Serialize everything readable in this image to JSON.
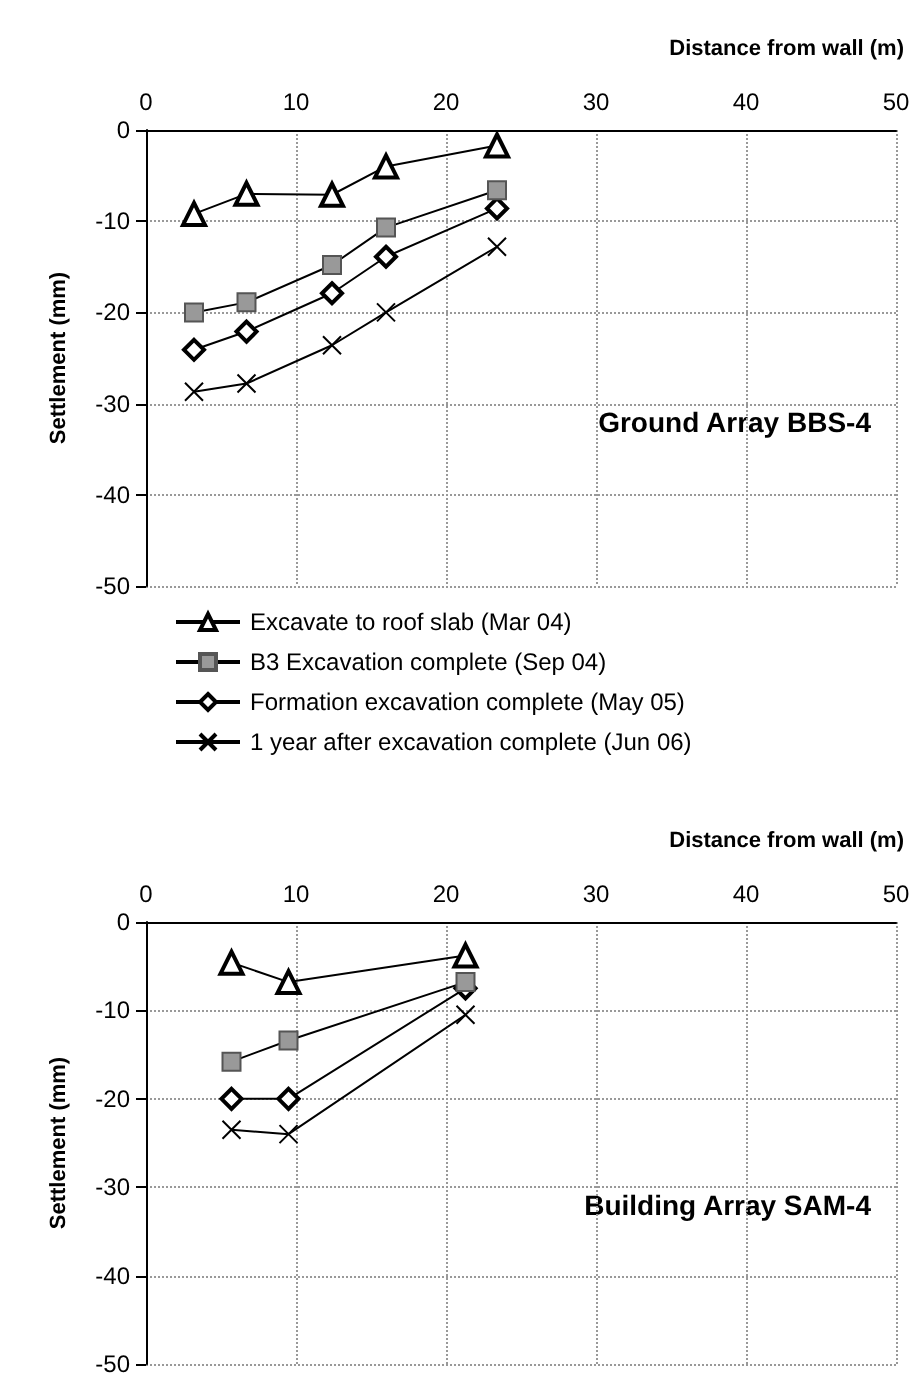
{
  "chart_data": [
    {
      "type": "line",
      "xlabel": "Distance from wall (m)",
      "ylabel": "Settlement (mm)",
      "annotations": [
        "Ground Array BBS-4"
      ],
      "xlim": [
        0,
        50
      ],
      "xticks": [
        0,
        10,
        20,
        30,
        40,
        50
      ],
      "ylim": [
        -50,
        0
      ],
      "yticks": [
        -50,
        -40,
        -30,
        -20,
        -10,
        0
      ],
      "grid": true,
      "legend": "bottom",
      "series": [
        {
          "name": "Excavate to roof slab (Mar 04)",
          "color": "#000000",
          "marker": "triangle",
          "x": [
            3.2,
            6.7,
            12.4,
            16.0,
            23.4
          ],
          "values": [
            -9.2,
            -7.0,
            -7.1,
            -4.0,
            -1.7
          ]
        },
        {
          "name": "B3 Excavation complete (Sep 04)",
          "color": "#999999",
          "marker": "square",
          "x": [
            3.2,
            6.7,
            12.4,
            16.0,
            23.4
          ],
          "values": [
            -20.0,
            -18.9,
            -14.8,
            -10.7,
            -6.6
          ]
        },
        {
          "name": "Formation excavation complete (May 05)",
          "color": "#000000",
          "marker": "diamond",
          "x": [
            3.2,
            6.7,
            12.4,
            16.0,
            23.4
          ],
          "values": [
            -24.1,
            -22.1,
            -17.9,
            -13.9,
            -8.6
          ]
        },
        {
          "name": "1 year after excavation complete (Jun 06)",
          "color": "#000000",
          "marker": "cross",
          "x": [
            3.2,
            6.7,
            12.4,
            16.0,
            23.4
          ],
          "values": [
            -28.7,
            -27.8,
            -23.6,
            -20.0,
            -12.8
          ]
        }
      ]
    },
    {
      "type": "line",
      "xlabel": "Distance from wall (m)",
      "ylabel": "Settlement (mm)",
      "annotations": [
        "Building Array SAM-4"
      ],
      "xlim": [
        0,
        50
      ],
      "xticks": [
        0,
        10,
        20,
        30,
        40,
        50
      ],
      "ylim": [
        -50,
        0
      ],
      "yticks": [
        -50,
        -40,
        -30,
        -20,
        -10,
        0
      ],
      "grid": true,
      "legend": false,
      "series": [
        {
          "color": "#000000",
          "marker": "triangle",
          "x": [
            5.7,
            9.5,
            21.3
          ],
          "values": [
            -4.6,
            -6.8,
            -3.8
          ]
        },
        {
          "color": "#999999",
          "marker": "square",
          "x": [
            5.7,
            9.5,
            21.3
          ],
          "values": [
            -15.8,
            -13.4,
            -6.8
          ]
        },
        {
          "color": "#000000",
          "marker": "diamond",
          "x": [
            5.7,
            9.5,
            21.3
          ],
          "values": [
            -20.0,
            -20.0,
            -7.5
          ]
        },
        {
          "color": "#000000",
          "marker": "cross",
          "x": [
            5.7,
            9.5,
            21.3
          ],
          "values": [
            -23.5,
            -24.0,
            -10.5
          ]
        }
      ]
    }
  ]
}
